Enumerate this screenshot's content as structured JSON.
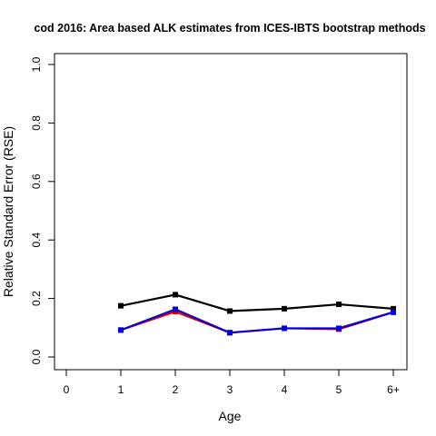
{
  "chart_data": {
    "type": "line",
    "title": "cod 2016: Area based ALK estimates from ICES-IBTS bootstrap methods",
    "xlabel": "Age",
    "ylabel": "Relative Standard Error (RSE)",
    "categories": [
      "0",
      "1",
      "2",
      "3",
      "4",
      "5",
      "6+"
    ],
    "yticks": [
      "0.0",
      "0.2",
      "0.4",
      "0.6",
      "0.8",
      "1.0"
    ],
    "ylim": [
      0,
      1
    ],
    "grid": false,
    "series": [
      {
        "name": "black",
        "color": "#000000",
        "marker": "square",
        "values": [
          null,
          0.175,
          0.213,
          0.157,
          0.165,
          0.18,
          0.165
        ]
      },
      {
        "name": "red",
        "color": "#dd0000",
        "marker": "square",
        "values": [
          null,
          0.092,
          0.155,
          0.083,
          0.098,
          0.095,
          0.153
        ]
      },
      {
        "name": "blue",
        "color": "#0000dd",
        "marker": "square",
        "values": [
          null,
          0.092,
          0.163,
          0.083,
          0.098,
          0.098,
          0.153
        ]
      }
    ]
  }
}
